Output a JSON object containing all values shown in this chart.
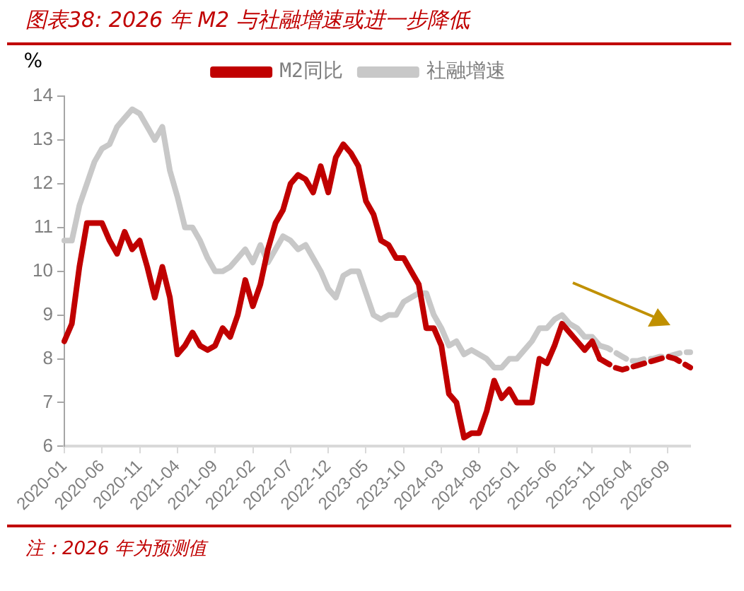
{
  "chart_data": {
    "type": "line",
    "title": "图表38:  2026 年 M2 与社融增速或进一步降低",
    "ylabel": "%",
    "categories": [
      "2020-01",
      null,
      null,
      null,
      null,
      "2020-06",
      null,
      null,
      null,
      null,
      "2020-11",
      null,
      null,
      null,
      null,
      "2021-04",
      null,
      null,
      null,
      null,
      "2021-09",
      null,
      null,
      null,
      null,
      "2022-02",
      null,
      null,
      null,
      null,
      "2022-07",
      null,
      null,
      null,
      null,
      "2022-12",
      null,
      null,
      null,
      null,
      "2023-05",
      null,
      null,
      null,
      null,
      "2023-10",
      null,
      null,
      null,
      null,
      "2024-03",
      null,
      null,
      null,
      null,
      "2024-08",
      null,
      null,
      null,
      null,
      "2025-01",
      null,
      null,
      null,
      null,
      "2025-06",
      null,
      null,
      null,
      null,
      "2025-11",
      null,
      null,
      null,
      null,
      "2026-04",
      null,
      null,
      null,
      null,
      "2026-09",
      null,
      null,
      null
    ],
    "ylim": [
      6,
      14
    ],
    "yticks": [
      6,
      7,
      8,
      9,
      10,
      11,
      12,
      13,
      14
    ],
    "series": [
      {
        "name": "M2同比",
        "color": "#c00000",
        "line_style": "solid",
        "values": [
          8.4,
          8.8,
          10.1,
          11.1,
          11.1,
          11.1,
          10.7,
          10.4,
          10.9,
          10.5,
          10.7,
          10.1,
          9.4,
          10.1,
          9.4,
          8.1,
          8.3,
          8.6,
          8.3,
          8.2,
          8.3,
          8.7,
          8.5,
          9.0,
          9.8,
          9.2,
          9.7,
          10.5,
          11.1,
          11.4,
          12.0,
          12.2,
          12.1,
          11.8,
          12.4,
          11.8,
          12.6,
          12.9,
          12.7,
          12.4,
          11.6,
          11.3,
          10.7,
          10.6,
          10.3,
          10.3,
          10.0,
          9.7,
          8.7,
          8.7,
          8.3,
          7.2,
          7.0,
          6.2,
          6.3,
          6.3,
          6.8,
          7.5,
          7.1,
          7.3,
          7.0,
          7.0,
          7.0,
          8.0,
          7.9,
          8.3,
          8.8,
          8.6,
          8.4,
          8.2,
          8.4,
          8.0,
          null,
          null,
          null,
          null,
          null,
          null,
          null,
          null,
          null,
          null,
          null,
          null
        ]
      },
      {
        "name": "社融增速",
        "color": "#c8c8c8",
        "line_style": "solid",
        "values": [
          10.7,
          10.7,
          11.5,
          12.0,
          12.5,
          12.8,
          12.9,
          13.3,
          13.5,
          13.7,
          13.6,
          13.3,
          13.0,
          13.3,
          12.3,
          11.7,
          11.0,
          11.0,
          10.7,
          10.3,
          10.0,
          10.0,
          10.1,
          10.3,
          10.5,
          10.2,
          10.6,
          10.2,
          10.5,
          10.8,
          10.7,
          10.5,
          10.6,
          10.3,
          10.0,
          9.6,
          9.4,
          9.9,
          10.0,
          10.0,
          9.5,
          9.0,
          8.9,
          9.0,
          9.0,
          9.3,
          9.4,
          9.5,
          9.5,
          9.0,
          8.7,
          8.3,
          8.4,
          8.1,
          8.2,
          8.1,
          8.0,
          7.8,
          7.8,
          8.0,
          8.0,
          8.2,
          8.4,
          8.7,
          8.7,
          8.9,
          9.0,
          8.8,
          8.7,
          8.5,
          8.5,
          8.3,
          null,
          null,
          null,
          null,
          null,
          null,
          null,
          null,
          null,
          null,
          null,
          null
        ]
      },
      {
        "color": "#c00000",
        "line_style": "dashed",
        "values": [
          null,
          null,
          null,
          null,
          null,
          null,
          null,
          null,
          null,
          null,
          null,
          null,
          null,
          null,
          null,
          null,
          null,
          null,
          null,
          null,
          null,
          null,
          null,
          null,
          null,
          null,
          null,
          null,
          null,
          null,
          null,
          null,
          null,
          null,
          null,
          null,
          null,
          null,
          null,
          null,
          null,
          null,
          null,
          null,
          null,
          null,
          null,
          null,
          null,
          null,
          null,
          null,
          null,
          null,
          null,
          null,
          null,
          null,
          null,
          null,
          null,
          null,
          null,
          null,
          null,
          null,
          null,
          null,
          null,
          null,
          null,
          8.0,
          7.9,
          7.8,
          7.75,
          7.8,
          7.85,
          7.9,
          7.95,
          8.0,
          8.05,
          8.0,
          7.9,
          7.8
        ]
      },
      {
        "color": "#c8c8c8",
        "line_style": "dashed",
        "values": [
          null,
          null,
          null,
          null,
          null,
          null,
          null,
          null,
          null,
          null,
          null,
          null,
          null,
          null,
          null,
          null,
          null,
          null,
          null,
          null,
          null,
          null,
          null,
          null,
          null,
          null,
          null,
          null,
          null,
          null,
          null,
          null,
          null,
          null,
          null,
          null,
          null,
          null,
          null,
          null,
          null,
          null,
          null,
          null,
          null,
          null,
          null,
          null,
          null,
          null,
          null,
          null,
          null,
          null,
          null,
          null,
          null,
          null,
          null,
          null,
          null,
          null,
          null,
          null,
          null,
          null,
          null,
          null,
          null,
          null,
          null,
          8.3,
          8.25,
          8.15,
          8.05,
          7.95,
          7.95,
          8.0,
          8.0,
          8.05,
          8.05,
          8.1,
          8.15,
          8.15
        ]
      }
    ],
    "legend": "top",
    "marker": "none",
    "grid": false,
    "annotations": [
      "注：2026 年为预测值"
    ]
  }
}
